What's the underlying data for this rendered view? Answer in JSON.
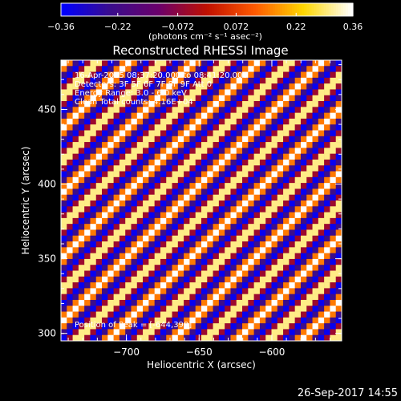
{
  "chart_data": {
    "type": "heatmap",
    "title": "Reconstructed RHESSI Image",
    "xlabel": "Heliocentric X (arcsec)",
    "ylabel": "Heliocentric Y (arcsec)",
    "xlim": [
      -745,
      -552
    ],
    "ylim": [
      295,
      483
    ],
    "x_ticks": [
      -700,
      -650,
      -600
    ],
    "x_tick_labels": [
      "−700",
      "−650",
      "−600"
    ],
    "y_ticks": [
      300,
      350,
      400,
      450
    ],
    "y_tick_labels": [
      "300",
      "350",
      "400",
      "450"
    ],
    "colorbar": {
      "min": -0.36,
      "max": 0.36,
      "ticks": [
        -0.36,
        -0.22,
        -0.072,
        0.072,
        0.22,
        0.36
      ],
      "tick_labels": [
        "−0.36",
        "−0.22",
        "−0.072",
        "0.072",
        "0.22",
        "0.36"
      ],
      "unit_label": "(photons cm⁻² s⁻¹ asec⁻²)"
    },
    "info_lines": [
      "16-Apr-2015 08:37:20.000 to 08:41:20.000",
      "Detectors: 3F 5F 6F 7F 8F 9F  Att 0",
      "Energy Range: 3.0 - 6.0 keV",
      "Clean      Total counts: 4.16E+04"
    ],
    "peak_label": "Position of Peak = [-644,390]",
    "grid_size": 48,
    "stripe_period_cells": 5.5,
    "stripe_direction": "diagonal, lower-left to upper-right",
    "colormap": [
      "#0000ff",
      "#3a0d8c",
      "#6b006b",
      "#c01000",
      "#ff5a00",
      "#ffd700",
      "#ffffff"
    ]
  },
  "timestamp": "26-Sep-2017 14:55"
}
